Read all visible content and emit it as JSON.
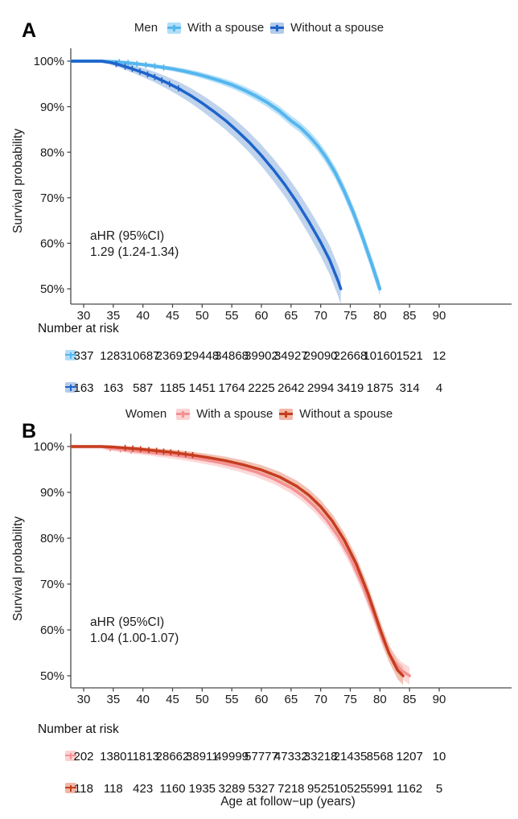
{
  "figure": {
    "y_axis_label": "Survival probability",
    "x_axis_label": "Age at follow−up (years)",
    "risk_header": "Number at risk"
  },
  "panels": [
    {
      "letter": "A",
      "legend_title": "Men",
      "series_labels": [
        "With a spouse",
        "Without a spouse"
      ],
      "annotation": [
        "aHR (95%CI)",
        "1.29 (1.24-1.34)"
      ]
    },
    {
      "letter": "B",
      "legend_title": "Women",
      "series_labels": [
        "With a spouse",
        "Without a spouse"
      ],
      "annotation": [
        "aHR (95%CI)",
        "1.04 (1.00-1.07)"
      ]
    }
  ],
  "chart_data": [
    {
      "type": "line",
      "subtype": "kaplan-meier-survival",
      "group": "Men",
      "xlabel": "Age at follow−up (years)",
      "ylabel": "Survival probability",
      "xlim": [
        27.8,
        102
      ],
      "ylim": [
        50,
        100
      ],
      "x_ticks": [
        30,
        35,
        40,
        45,
        50,
        55,
        60,
        65,
        70,
        75,
        80,
        85,
        90
      ],
      "y_ticks": [
        100,
        90,
        80,
        70,
        60,
        50
      ],
      "y_tick_suffix": "%",
      "grid": false,
      "legend_position": "top-center",
      "annotation": "aHR (95%CI) 1.29 (1.24-1.34)",
      "series": [
        {
          "name": "With a spouse",
          "color": "#55b6ee",
          "ci_color": "#b0ddf8",
          "line_width": 4,
          "points": [
            [
              28,
              100
            ],
            [
              33,
              100
            ],
            [
              35,
              99.9
            ],
            [
              37,
              99.7
            ],
            [
              39,
              99.4
            ],
            [
              41,
              99.1
            ],
            [
              43,
              98.7
            ],
            [
              45,
              98.3
            ],
            [
              47,
              97.8
            ],
            [
              49,
              97.2
            ],
            [
              51,
              96.5
            ],
            [
              53,
              95.7
            ],
            [
              55,
              94.8
            ],
            [
              57,
              93.7
            ],
            [
              59,
              92.4
            ],
            [
              61,
              90.9
            ],
            [
              63,
              89.1
            ],
            [
              65,
              86.9
            ],
            [
              66.5,
              85.5
            ],
            [
              68,
              83.6
            ],
            [
              69.5,
              81.4
            ],
            [
              71,
              78.7
            ],
            [
              72.5,
              75.4
            ],
            [
              74,
              71.4
            ],
            [
              75.5,
              66.8
            ],
            [
              77,
              61.6
            ],
            [
              78.5,
              55.9
            ],
            [
              80,
              50
            ]
          ],
          "ci_delta": [
            [
              33,
              0.2
            ],
            [
              45,
              0.5
            ],
            [
              55,
              0.8
            ],
            [
              65,
              1.1
            ],
            [
              72,
              1.3
            ],
            [
              80,
              1.6
            ]
          ],
          "censor_ages": [
            36,
            37.5,
            39,
            40.5,
            42,
            43.5
          ]
        },
        {
          "name": "Without a spouse",
          "color": "#1e64cb",
          "ci_color": "#b4cbe9",
          "line_width": 3.5,
          "points": [
            [
              28,
              100
            ],
            [
              33,
              100
            ],
            [
              34.5,
              99.7
            ],
            [
              36,
              99.2
            ],
            [
              38,
              98.4
            ],
            [
              40,
              97.5
            ],
            [
              42,
              96.5
            ],
            [
              44,
              95.3
            ],
            [
              46,
              94.0
            ],
            [
              48,
              92.5
            ],
            [
              50,
              90.8
            ],
            [
              52,
              88.9
            ],
            [
              54,
              86.9
            ],
            [
              56,
              84.6
            ],
            [
              58,
              82.1
            ],
            [
              60,
              79.3
            ],
            [
              62,
              76.2
            ],
            [
              64,
              72.8
            ],
            [
              66,
              69.0
            ],
            [
              68,
              64.8
            ],
            [
              70,
              60.2
            ],
            [
              71.5,
              56.4
            ],
            [
              73,
              51.5
            ],
            [
              73.4,
              50
            ]
          ],
          "ci_delta": [
            [
              34,
              0.4
            ],
            [
              40,
              1.0
            ],
            [
              46,
              1.5
            ],
            [
              52,
              1.9
            ],
            [
              58,
              2.2
            ],
            [
              64,
              2.6
            ],
            [
              70,
              3.0
            ],
            [
              73.4,
              3.4
            ]
          ],
          "censor_ages": [
            35.5,
            37,
            38.2,
            39.5,
            40.8,
            42,
            43.2,
            44.5,
            46
          ]
        }
      ],
      "number_at_risk": {
        "ages": [
          30,
          35,
          40,
          45,
          50,
          55,
          60,
          65,
          70,
          75,
          80,
          85,
          90
        ],
        "rows": [
          {
            "name": "With a spouse",
            "values": [
              337,
              1283,
              10687,
              23691,
              29448,
              34868,
              39902,
              34927,
              29090,
              22668,
              10160,
              1521,
              12
            ]
          },
          {
            "name": "Without a spouse",
            "values": [
              163,
              163,
              587,
              1185,
              1451,
              1764,
              2225,
              2642,
              2994,
              3419,
              1875,
              314,
              4
            ]
          }
        ]
      }
    },
    {
      "type": "line",
      "subtype": "kaplan-meier-survival",
      "group": "Women",
      "xlabel": "Age at follow−up (years)",
      "ylabel": "Survival probability",
      "xlim": [
        27.8,
        102
      ],
      "ylim": [
        50,
        100
      ],
      "x_ticks": [
        30,
        35,
        40,
        45,
        50,
        55,
        60,
        65,
        70,
        75,
        80,
        85,
        90
      ],
      "y_ticks": [
        100,
        90,
        80,
        70,
        60,
        50
      ],
      "y_tick_suffix": "%",
      "grid": false,
      "legend_position": "top-center",
      "annotation": "aHR (95%CI) 1.04 (1.00-1.07)",
      "series": [
        {
          "name": "With a spouse",
          "color": "#f59193",
          "ci_color": "#fbd2d2",
          "line_width": 3.5,
          "points": [
            [
              28,
              100
            ],
            [
              33,
              100
            ],
            [
              34,
              99.7
            ],
            [
              36,
              99.4
            ],
            [
              38,
              99.1
            ],
            [
              41,
              98.7
            ],
            [
              44,
              98.3
            ],
            [
              47,
              97.8
            ],
            [
              50,
              97.2
            ],
            [
              53,
              96.5
            ],
            [
              56,
              95.6
            ],
            [
              59,
              94.5
            ],
            [
              62,
              93.0
            ],
            [
              65,
              91.0
            ],
            [
              67,
              89.2
            ],
            [
              69,
              86.9
            ],
            [
              71,
              84.0
            ],
            [
              73,
              80.3
            ],
            [
              75,
              75.7
            ],
            [
              77,
              70.0
            ],
            [
              79,
              63.2
            ],
            [
              80.5,
              57.8
            ],
            [
              82,
              53.8
            ],
            [
              83.5,
              51.3
            ],
            [
              85,
              50
            ]
          ],
          "ci_delta": [
            [
              34,
              0.5
            ],
            [
              45,
              0.8
            ],
            [
              55,
              1.0
            ],
            [
              65,
              1.2
            ],
            [
              75,
              1.5
            ],
            [
              85,
              1.9
            ]
          ],
          "censor_ages": [
            34.5,
            36.2,
            38
          ]
        },
        {
          "name": "Without a spouse",
          "color": "#c53d1f",
          "ci_color": "#f0b7a6",
          "line_width": 3.5,
          "points": [
            [
              28,
              100
            ],
            [
              33,
              100
            ],
            [
              35,
              99.9
            ],
            [
              37,
              99.7
            ],
            [
              39,
              99.5
            ],
            [
              42,
              99.1
            ],
            [
              45,
              98.7
            ],
            [
              48,
              98.2
            ],
            [
              51,
              97.6
            ],
            [
              54,
              96.9
            ],
            [
              57,
              96.0
            ],
            [
              60,
              94.9
            ],
            [
              63,
              93.4
            ],
            [
              66,
              91.3
            ],
            [
              68,
              89.4
            ],
            [
              70,
              86.9
            ],
            [
              72,
              83.7
            ],
            [
              74,
              79.6
            ],
            [
              76,
              74.4
            ],
            [
              78,
              67.9
            ],
            [
              80,
              60.3
            ],
            [
              81.5,
              55.0
            ],
            [
              83,
              51.2
            ],
            [
              83.9,
              50
            ]
          ],
          "ci_delta": [
            [
              34,
              0.3
            ],
            [
              45,
              0.6
            ],
            [
              55,
              0.9
            ],
            [
              65,
              1.2
            ],
            [
              75,
              1.6
            ],
            [
              83.9,
              2.0
            ]
          ],
          "censor_ages": [
            37,
            38.3,
            39.6,
            41,
            42.3,
            43.5,
            44.7,
            46,
            47.2,
            48.4
          ]
        }
      ],
      "number_at_risk": {
        "ages": [
          30,
          35,
          40,
          45,
          50,
          55,
          60,
          65,
          70,
          75,
          80,
          85,
          90
        ],
        "rows": [
          {
            "name": "With a spouse",
            "values": [
              202,
              1380,
              11813,
              28662,
              38911,
              49999,
              57777,
              47332,
              33218,
              21435,
              8568,
              1207,
              10
            ]
          },
          {
            "name": "Without a spouse",
            "values": [
              118,
              118,
              423,
              1160,
              1935,
              3289,
              5327,
              7218,
              9525,
              10525,
              5991,
              1162,
              5
            ]
          }
        ]
      }
    }
  ]
}
